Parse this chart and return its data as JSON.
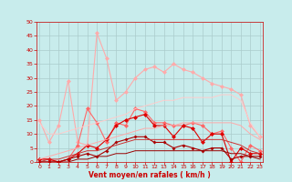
{
  "x": [
    0,
    1,
    2,
    3,
    4,
    5,
    6,
    7,
    8,
    9,
    10,
    11,
    12,
    13,
    14,
    15,
    16,
    17,
    18,
    19,
    20,
    21,
    22,
    23
  ],
  "series": [
    {
      "color": "#ffaaaa",
      "linewidth": 0.8,
      "markersize": 2.5,
      "marker": "D",
      "values": [
        15,
        7,
        13,
        29,
        7,
        6,
        46,
        37,
        22,
        25,
        30,
        33,
        34,
        32,
        35,
        33,
        32,
        30,
        28,
        27,
        26,
        24,
        13,
        9
      ]
    },
    {
      "color": "#ff6666",
      "linewidth": 0.8,
      "markersize": 2.5,
      "marker": "D",
      "values": [
        1,
        1,
        0,
        1,
        6,
        19,
        14,
        7,
        14,
        13,
        19,
        18,
        14,
        14,
        13,
        13,
        14,
        13,
        10,
        11,
        5,
        0,
        6,
        4
      ]
    },
    {
      "color": "#dd0000",
      "linewidth": 0.8,
      "markersize": 2.5,
      "marker": "D",
      "values": [
        1,
        1,
        0,
        1,
        3,
        6,
        5,
        8,
        13,
        15,
        16,
        17,
        13,
        13,
        9,
        13,
        12,
        7,
        10,
        10,
        0,
        5,
        3,
        3
      ]
    },
    {
      "color": "#aa0000",
      "linewidth": 0.8,
      "markersize": 2.0,
      "marker": "D",
      "values": [
        0,
        0,
        0,
        1,
        2,
        3,
        2,
        4,
        7,
        8,
        9,
        9,
        7,
        7,
        5,
        6,
        5,
        4,
        5,
        5,
        1,
        2,
        2,
        2
      ]
    },
    {
      "color": "#ffcccc",
      "linewidth": 0.7,
      "markersize": 0,
      "marker": null,
      "linestyle": "-",
      "values": [
        14,
        10,
        10,
        11,
        12,
        13,
        14,
        15,
        16,
        17,
        19,
        20,
        21,
        22,
        22,
        23,
        23,
        23,
        23,
        24,
        24,
        22,
        14,
        9
      ]
    },
    {
      "color": "#ffaaaa",
      "linewidth": 0.7,
      "markersize": 0,
      "marker": null,
      "linestyle": "-",
      "values": [
        1,
        2,
        3,
        4,
        5,
        6,
        7,
        8,
        9,
        10,
        11,
        12,
        12,
        13,
        13,
        14,
        14,
        14,
        14,
        14,
        14,
        13,
        10,
        8
      ]
    },
    {
      "color": "#cc3333",
      "linewidth": 0.7,
      "markersize": 0,
      "marker": null,
      "linestyle": "-",
      "values": [
        0,
        1,
        1,
        2,
        3,
        4,
        4,
        5,
        6,
        7,
        8,
        8,
        8,
        8,
        8,
        8,
        8,
        8,
        8,
        8,
        7,
        6,
        4,
        3
      ]
    },
    {
      "color": "#990000",
      "linewidth": 0.7,
      "markersize": 0,
      "marker": null,
      "linestyle": "-",
      "values": [
        0,
        0,
        0,
        0,
        1,
        1,
        2,
        2,
        3,
        3,
        4,
        4,
        4,
        4,
        4,
        4,
        4,
        4,
        4,
        4,
        3,
        3,
        2,
        1
      ]
    }
  ],
  "xlim": [
    -0.3,
    23.3
  ],
  "ylim": [
    0,
    50
  ],
  "yticks": [
    0,
    5,
    10,
    15,
    20,
    25,
    30,
    35,
    40,
    45,
    50
  ],
  "xticks": [
    0,
    1,
    2,
    3,
    4,
    5,
    6,
    7,
    8,
    9,
    10,
    11,
    12,
    13,
    14,
    15,
    16,
    17,
    18,
    19,
    20,
    21,
    22,
    23
  ],
  "xlabel": "Vent moyen/en rafales ( km/h )",
  "bg_color": "#c8ecec",
  "grid_color": "#aacccc",
  "tick_color": "#cc0000",
  "label_color": "#cc0000",
  "spine_color": "#cc0000"
}
